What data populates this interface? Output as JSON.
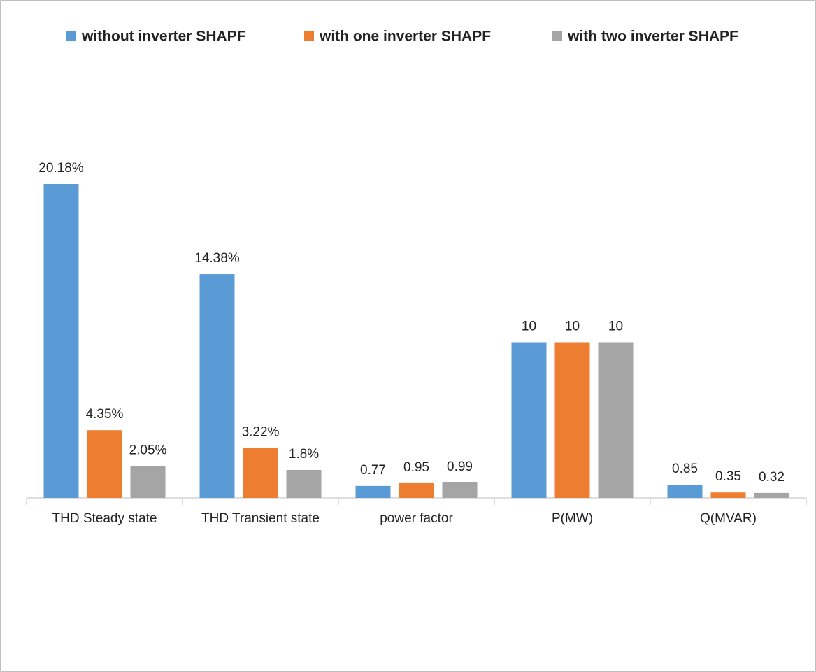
{
  "chart_data": {
    "type": "bar",
    "categories": [
      "THD Steady state",
      "THD Transient state",
      "power factor",
      "P(MW)",
      "Q(MVAR)"
    ],
    "series": [
      {
        "name": "without inverter SHAPF",
        "color": "#5b9bd5",
        "values": [
          20.18,
          14.38,
          0.77,
          10,
          0.85
        ],
        "value_labels": [
          "20.18%",
          "14.38%",
          "0.77",
          "10",
          "0.85"
        ]
      },
      {
        "name": "with one inverter SHAPF",
        "color": "#ed7d31",
        "values": [
          4.35,
          3.22,
          0.95,
          10,
          0.35
        ],
        "value_labels": [
          "4.35%",
          "3.22%",
          "0.95",
          "10",
          "0.35"
        ]
      },
      {
        "name": "with two inverter SHAPF",
        "color": "#a5a5a5",
        "values": [
          2.05,
          1.8,
          0.99,
          10,
          0.32
        ],
        "value_labels": [
          "2.05%",
          "1.8%",
          "0.99",
          "10",
          "0.32"
        ]
      }
    ],
    "legend": "top"
  }
}
